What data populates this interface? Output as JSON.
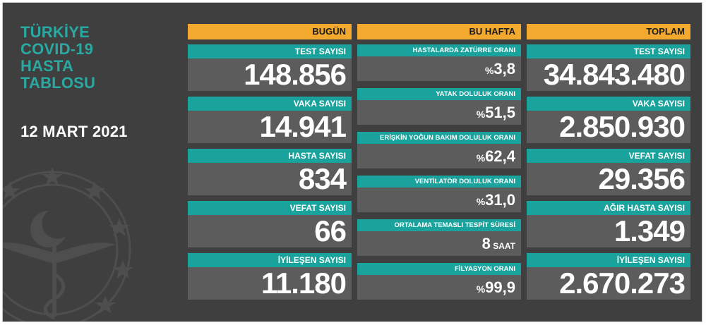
{
  "title_lines": [
    "TÜRKİYE",
    "COVID-19",
    "HASTA",
    "TABLOSU"
  ],
  "date": "12 MART 2021",
  "colors": {
    "background": "#3f3f3f",
    "header": "#f3a92e",
    "label": "#1aa39c",
    "value_box": "#5c5c5c",
    "title": "#2aa9a3"
  },
  "columns": {
    "bugun": {
      "header": "BUGÜN",
      "stats": [
        {
          "label": "TEST SAYISI",
          "value": "148.856"
        },
        {
          "label": "VAKA SAYISI",
          "value": "14.941"
        },
        {
          "label": "HASTA SAYISI",
          "value": "834"
        },
        {
          "label": "VEFAT SAYISI",
          "value": "66"
        },
        {
          "label": "İYİLEŞEN SAYISI",
          "value": "11.180"
        }
      ]
    },
    "hafta": {
      "header": "BU HAFTA",
      "stats": [
        {
          "label": "HASTALARDA ZATÜRRE ORANI",
          "prefix": "%",
          "value": "3,8",
          "unit": ""
        },
        {
          "label": "YATAK DOLULUK ORANI",
          "prefix": "%",
          "value": "51,5",
          "unit": ""
        },
        {
          "label": "ERİŞKİN YOĞUN BAKIM DOLULUK ORANI",
          "prefix": "%",
          "value": "62,4",
          "unit": ""
        },
        {
          "label": "VENTİLATÖR DOLULUK ORANI",
          "prefix": "%",
          "value": "31,0",
          "unit": ""
        },
        {
          "label": "ORTALAMA TEMASLI TESPİT SÜRESİ",
          "prefix": "",
          "value": "8",
          "unit": " SAAT"
        },
        {
          "label": "FİLYASYON ORANI",
          "prefix": "%",
          "value": "99,9",
          "unit": ""
        }
      ]
    },
    "toplam": {
      "header": "TOPLAM",
      "stats": [
        {
          "label": "TEST SAYISI",
          "value": "34.843.480"
        },
        {
          "label": "VAKA SAYISI",
          "value": "2.850.930"
        },
        {
          "label": "VEFAT SAYISI",
          "value": "29.356"
        },
        {
          "label": "AĞIR HASTA SAYISI",
          "value": "1.349"
        },
        {
          "label": "İYİLEŞEN SAYISI",
          "value": "2.670.273"
        }
      ]
    }
  },
  "emblem_icon": "ministry-of-health-emblem-icon"
}
